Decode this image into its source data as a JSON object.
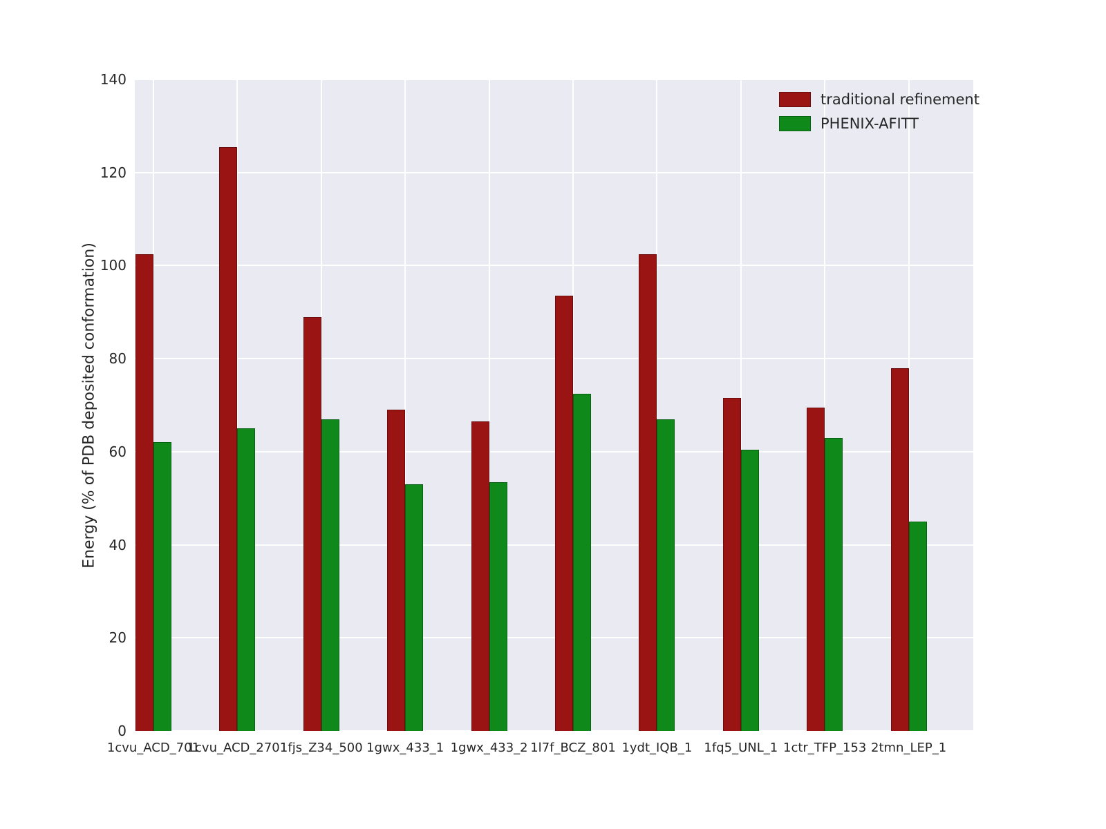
{
  "chart_data": {
    "type": "bar",
    "title": "",
    "xlabel": "",
    "ylabel": "Energy (% of PDB deposited conformation)",
    "ylim": [
      0,
      140
    ],
    "yticks": [
      0,
      20,
      40,
      60,
      80,
      100,
      120,
      140
    ],
    "grid": true,
    "plot_background": "#eaeaf2",
    "grid_color": "#ffffff",
    "legend_position": "upper right",
    "categories": [
      "1cvu_ACD_701",
      "1cvu_ACD_2701",
      "1fjs_Z34_500",
      "1gwx_433_1",
      "1gwx_433_2",
      "1l7f_BCZ_801",
      "1ydt_IQB_1",
      "1fq5_UNL_1",
      "1ctr_TFP_153",
      "2tmn_LEP_1"
    ],
    "series": [
      {
        "name": "traditional refinement",
        "color": "#9b1414",
        "values": [
          102.5,
          125.5,
          89,
          69,
          66.5,
          93.5,
          102.5,
          71.5,
          69.5,
          78
        ]
      },
      {
        "name": "PHENIX-AFITT",
        "color": "#0f8a1a",
        "values": [
          62,
          65,
          67,
          53,
          53.5,
          72.5,
          67,
          60.5,
          63,
          45
        ]
      }
    ]
  }
}
